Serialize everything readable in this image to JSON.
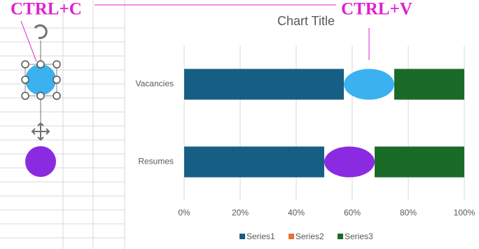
{
  "chart_data": {
    "type": "stacked_bar_horizontal",
    "title": "Chart Title",
    "categories": [
      "Vacancies",
      "Resumes"
    ],
    "series": [
      {
        "name": "Series1",
        "color": "#175e85",
        "values": [
          57,
          50
        ]
      },
      {
        "name": "Series2",
        "color": "#e97132",
        "values": [
          18,
          18
        ],
        "shape": "ellipse",
        "point_colors": [
          "#3bb1ef",
          "#8a2be2"
        ]
      },
      {
        "name": "Series3",
        "color": "#1a6b27",
        "values": [
          25,
          32
        ]
      }
    ],
    "xlim": [
      0,
      100
    ],
    "xticks": [
      {
        "value": 0,
        "label": "0%"
      },
      {
        "value": 20,
        "label": "20%"
      },
      {
        "value": 40,
        "label": "40%"
      },
      {
        "value": 60,
        "label": "60%"
      },
      {
        "value": 80,
        "label": "80%"
      },
      {
        "value": 100,
        "label": "100%"
      }
    ],
    "grid": true,
    "legend": "bottom",
    "annotations": [
      "CTRL+C",
      "CTRL+V"
    ]
  }
}
